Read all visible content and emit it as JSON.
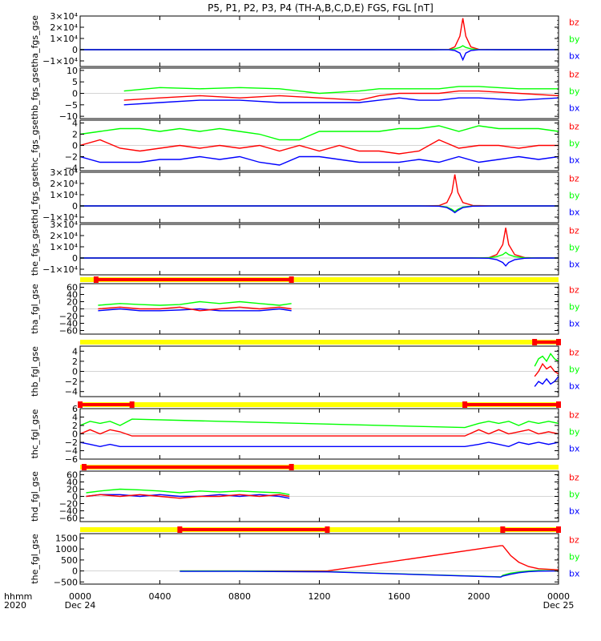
{
  "title": "P5, P1, P2, P3, P4 (TH-A,B,C,D,E) FGS, FGL [nT]",
  "colors": {
    "bx": "#0000ff",
    "by": "#00ff00",
    "bz": "#ff0000",
    "bar_avail": "#ff0000",
    "bar_none": "#ffff00",
    "axis": "#000000"
  },
  "legend": {
    "bz": "bz",
    "by": "by",
    "bx": "bx"
  },
  "xaxis": {
    "label_left_1": "hhmm",
    "label_left_2": "2020",
    "ticks": [
      "0000",
      "0400",
      "0800",
      "1200",
      "1600",
      "2000",
      "0000"
    ],
    "date_start": "Dec 24",
    "date_end": "Dec 25"
  },
  "chart_data": [
    {
      "type": "line",
      "id": "tha_fgs",
      "ylabel": "tha_fgs_gse",
      "ylim": [
        -15000,
        30000
      ],
      "yticks": [
        "3×10⁴",
        "2×10⁴",
        "1×10⁴",
        "0",
        "−1×10⁴"
      ],
      "ytick_values": [
        30000,
        20000,
        10000,
        0,
        -10000
      ],
      "x_hours": [
        0,
        17.5,
        18.5,
        18.8,
        19.05,
        19.2,
        19.35,
        19.6,
        20.0,
        21.2,
        24
      ],
      "series": [
        {
          "name": "bz",
          "values": [
            0,
            0,
            200,
            2500,
            12000,
            28000,
            12000,
            2500,
            300,
            0,
            0
          ]
        },
        {
          "name": "by",
          "values": [
            0,
            0,
            100,
            800,
            2000,
            3500,
            2000,
            800,
            100,
            0,
            0
          ]
        },
        {
          "name": "bx",
          "values": [
            0,
            0,
            -100,
            -800,
            -3000,
            -9000,
            -3000,
            -800,
            -100,
            0,
            0
          ]
        }
      ]
    },
    {
      "type": "line",
      "id": "thb_fgs",
      "ylabel": "thb_fgs_gse",
      "ylim": [
        -11,
        11
      ],
      "yticks": [
        "10",
        "5",
        "0",
        "−5",
        "−10"
      ],
      "ytick_values": [
        10,
        5,
        0,
        -5,
        -10
      ],
      "x_hours": [
        2.2,
        4,
        6,
        8,
        10,
        12,
        14,
        15,
        16,
        17,
        18,
        19,
        20,
        22,
        24
      ],
      "series": [
        {
          "name": "by",
          "values": [
            1,
            2.5,
            2,
            2.5,
            2,
            0,
            1,
            2,
            2,
            2,
            2,
            3,
            3,
            2,
            2
          ]
        },
        {
          "name": "bz",
          "values": [
            -3,
            -2,
            -1,
            -2,
            -1,
            -2,
            -3,
            -1,
            0,
            0,
            0,
            1,
            1,
            0,
            -1
          ]
        },
        {
          "name": "bx",
          "values": [
            -5,
            -4,
            -3,
            -3,
            -4,
            -4,
            -4,
            -3,
            -2,
            -3,
            -3,
            -2,
            -2,
            -3,
            -2
          ]
        }
      ]
    },
    {
      "type": "line",
      "id": "thc_fgs",
      "ylabel": "thc_fgs_gse",
      "ylim": [
        -4.5,
        4.5
      ],
      "yticks": [
        "4",
        "2",
        "0",
        "−2",
        "−4"
      ],
      "ytick_values": [
        4,
        2,
        0,
        -2,
        -4
      ],
      "x_hours": [
        0,
        1,
        2,
        3,
        4,
        5,
        6,
        7,
        8,
        9,
        10,
        11,
        12,
        13,
        14,
        15,
        16,
        17,
        18,
        19,
        20,
        21,
        22,
        23,
        24
      ],
      "series": [
        {
          "name": "by",
          "values": [
            2,
            2.5,
            3,
            3,
            2.5,
            3,
            2.5,
            3,
            2.5,
            2,
            1,
            1,
            2.5,
            2.5,
            2.5,
            2.5,
            3,
            3,
            3.5,
            2.5,
            3.5,
            3,
            3,
            3,
            2.5
          ]
        },
        {
          "name": "bz",
          "values": [
            0,
            1,
            -0.5,
            -1,
            -0.5,
            0,
            -0.5,
            0,
            -0.5,
            0,
            -1,
            0,
            -1,
            0,
            -1,
            -1,
            -1.5,
            -1,
            1,
            -0.5,
            0,
            0,
            -0.5,
            0,
            0
          ]
        },
        {
          "name": "bx",
          "values": [
            -2,
            -3,
            -3,
            -3,
            -2.5,
            -2.5,
            -2,
            -2.5,
            -2,
            -3,
            -3.5,
            -2,
            -2,
            -2.5,
            -3,
            -3,
            -3,
            -2.5,
            -3,
            -2,
            -3,
            -2.5,
            -2,
            -2.5,
            -2
          ]
        }
      ]
    },
    {
      "type": "line",
      "id": "thd_fgs",
      "ylabel": "thd_fgs_gse",
      "ylim": [
        -15000,
        30000
      ],
      "yticks": [
        "3×10⁴",
        "2×10⁴",
        "1×10⁴",
        "0",
        "−1×10⁴"
      ],
      "ytick_values": [
        30000,
        20000,
        10000,
        0,
        -10000
      ],
      "x_hours": [
        0,
        17.0,
        18.0,
        18.4,
        18.65,
        18.8,
        18.95,
        19.2,
        19.7,
        21.0,
        24
      ],
      "series": [
        {
          "name": "bz",
          "values": [
            0,
            0,
            300,
            3000,
            12000,
            28000,
            12000,
            3000,
            400,
            0,
            0
          ]
        },
        {
          "name": "by",
          "values": [
            0,
            0,
            -100,
            -1000,
            -3000,
            -5000,
            -3000,
            -1000,
            -100,
            0,
            0
          ]
        },
        {
          "name": "bx",
          "values": [
            0,
            0,
            -200,
            -1500,
            -4000,
            -6000,
            -4000,
            -1500,
            -200,
            0,
            0
          ]
        }
      ]
    },
    {
      "type": "line",
      "id": "the_fgs",
      "ylabel": "the_fgs_gse",
      "ylim": [
        -15000,
        30000
      ],
      "yticks": [
        "3×10⁴",
        "2×10⁴",
        "1×10⁴",
        "0",
        "−1×10⁴"
      ],
      "ytick_values": [
        30000,
        20000,
        10000,
        0,
        -10000
      ],
      "x_hours": [
        0,
        19.5,
        20.5,
        20.9,
        21.2,
        21.35,
        21.5,
        21.8,
        22.3,
        23.0,
        24
      ],
      "series": [
        {
          "name": "bz",
          "values": [
            0,
            0,
            300,
            3000,
            12000,
            27000,
            12000,
            3000,
            400,
            0,
            0
          ]
        },
        {
          "name": "by",
          "values": [
            0,
            0,
            200,
            1200,
            3000,
            5000,
            3000,
            1200,
            200,
            0,
            0
          ]
        },
        {
          "name": "bx",
          "values": [
            0,
            0,
            -200,
            -1500,
            -4000,
            -7000,
            -4000,
            -1500,
            -200,
            0,
            0
          ]
        }
      ]
    },
    {
      "type": "line",
      "id": "tha_fgl",
      "ylabel": "tha_fgl_gse",
      "ylim": [
        -70,
        70
      ],
      "yticks": [
        "60",
        "40",
        "20",
        "0",
        "−20",
        "−40",
        "−60"
      ],
      "ytick_values": [
        60,
        40,
        20,
        0,
        -20,
        -40,
        -60
      ],
      "availability": [
        [
          0.8,
          10.6
        ]
      ],
      "x_hours": [
        0.9,
        2,
        3,
        4,
        5,
        6,
        7,
        8,
        9,
        10,
        10.6
      ],
      "series": [
        {
          "name": "by",
          "values": [
            10,
            15,
            12,
            10,
            12,
            20,
            15,
            20,
            15,
            10,
            15
          ]
        },
        {
          "name": "bx",
          "values": [
            -5,
            0,
            -5,
            -5,
            -3,
            0,
            -5,
            -5,
            -5,
            0,
            -5
          ]
        },
        {
          "name": "bz",
          "values": [
            0,
            5,
            0,
            0,
            5,
            -5,
            0,
            5,
            0,
            5,
            0
          ]
        }
      ]
    },
    {
      "type": "line",
      "id": "thb_fgl",
      "ylabel": "thb_fgl_gse",
      "ylim": [
        -5,
        5
      ],
      "yticks": [
        "4",
        "2",
        "0",
        "−2",
        "−4"
      ],
      "ytick_values": [
        4,
        2,
        0,
        -2,
        -4
      ],
      "availability": [
        [
          22.8,
          24
        ]
      ],
      "x_hours": [
        22.8,
        23.0,
        23.2,
        23.4,
        23.6,
        23.8,
        24.0
      ],
      "series": [
        {
          "name": "by",
          "values": [
            1,
            2.5,
            3,
            2,
            3.5,
            2.5,
            2
          ]
        },
        {
          "name": "bz",
          "values": [
            -1,
            0,
            1.5,
            0.5,
            1,
            0,
            -0.5
          ]
        },
        {
          "name": "bx",
          "values": [
            -3,
            -2,
            -2.5,
            -1.5,
            -2.5,
            -2,
            -1
          ]
        }
      ]
    },
    {
      "type": "line",
      "id": "thc_fgl",
      "ylabel": "thc_fgl_gse",
      "ylim": [
        -6,
        6
      ],
      "yticks": [
        "6",
        "4",
        "2",
        "0",
        "−2",
        "−4",
        "−6"
      ],
      "ytick_values": [
        6,
        4,
        2,
        0,
        -2,
        -4,
        -6
      ],
      "availability": [
        [
          0,
          2.6
        ],
        [
          19.3,
          24
        ]
      ],
      "x_hours": [
        0,
        0.5,
        1,
        1.5,
        2,
        2.6,
        19.3,
        20,
        20.5,
        21,
        21.5,
        22,
        22.5,
        23,
        23.5,
        24
      ],
      "series": [
        {
          "name": "by",
          "values": [
            2,
            3,
            2.5,
            3,
            2,
            3.5,
            1.5,
            2.5,
            3,
            2.5,
            3,
            2,
            3,
            2.5,
            3,
            2.5
          ]
        },
        {
          "name": "bz",
          "values": [
            0,
            1,
            0,
            1,
            0.5,
            -0.5,
            -0.5,
            1,
            0,
            1,
            0,
            0.5,
            1,
            0,
            0.5,
            0
          ]
        },
        {
          "name": "bx",
          "values": [
            -2,
            -2.5,
            -3,
            -2.5,
            -3,
            -3,
            -3,
            -2.5,
            -2,
            -2.5,
            -3,
            -2,
            -2.5,
            -2,
            -2.5,
            -2
          ]
        }
      ]
    },
    {
      "type": "line",
      "id": "thd_fgl",
      "ylabel": "thd_fgl_gse",
      "ylim": [
        -70,
        70
      ],
      "yticks": [
        "60",
        "40",
        "20",
        "0",
        "−20",
        "−40",
        "−60"
      ],
      "ytick_values": [
        60,
        40,
        20,
        0,
        -20,
        -40,
        -60
      ],
      "availability": [
        [
          0.2,
          10.6
        ]
      ],
      "x_hours": [
        0.3,
        1,
        2,
        3,
        4,
        5,
        6,
        7,
        8,
        9,
        10,
        10.5
      ],
      "series": [
        {
          "name": "by",
          "values": [
            10,
            15,
            20,
            18,
            15,
            10,
            15,
            12,
            15,
            12,
            10,
            5
          ]
        },
        {
          "name": "bx",
          "values": [
            0,
            5,
            5,
            0,
            5,
            0,
            0,
            5,
            0,
            5,
            0,
            -5
          ]
        },
        {
          "name": "bz",
          "values": [
            0,
            5,
            0,
            5,
            0,
            -5,
            0,
            0,
            5,
            0,
            5,
            0
          ]
        }
      ]
    },
    {
      "type": "line",
      "id": "the_fgl",
      "ylabel": "the_fgl_gse",
      "ylim": [
        -600,
        1700
      ],
      "yticks": [
        "1500",
        "1000",
        "500",
        "0",
        "−500"
      ],
      "ytick_values": [
        1500,
        1000,
        500,
        0,
        -500
      ],
      "availability": [
        [
          5.0,
          12.4
        ],
        [
          21.2,
          24
        ]
      ],
      "x_hours": [
        5.0,
        8,
        10.5,
        12.4,
        21.1,
        21.2,
        21.6,
        22,
        22.5,
        23,
        24
      ],
      "series": [
        {
          "name": "bz",
          "values": [
            0,
            0,
            0,
            0,
            1150,
            1150,
            700,
            400,
            200,
            100,
            50
          ]
        },
        {
          "name": "by",
          "values": [
            0,
            0,
            -20,
            -30,
            -270,
            -200,
            -100,
            -50,
            0,
            20,
            0
          ]
        },
        {
          "name": "bx",
          "values": [
            -20,
            -20,
            -30,
            -40,
            -280,
            -230,
            -150,
            -80,
            -30,
            -10,
            0
          ]
        }
      ]
    }
  ]
}
